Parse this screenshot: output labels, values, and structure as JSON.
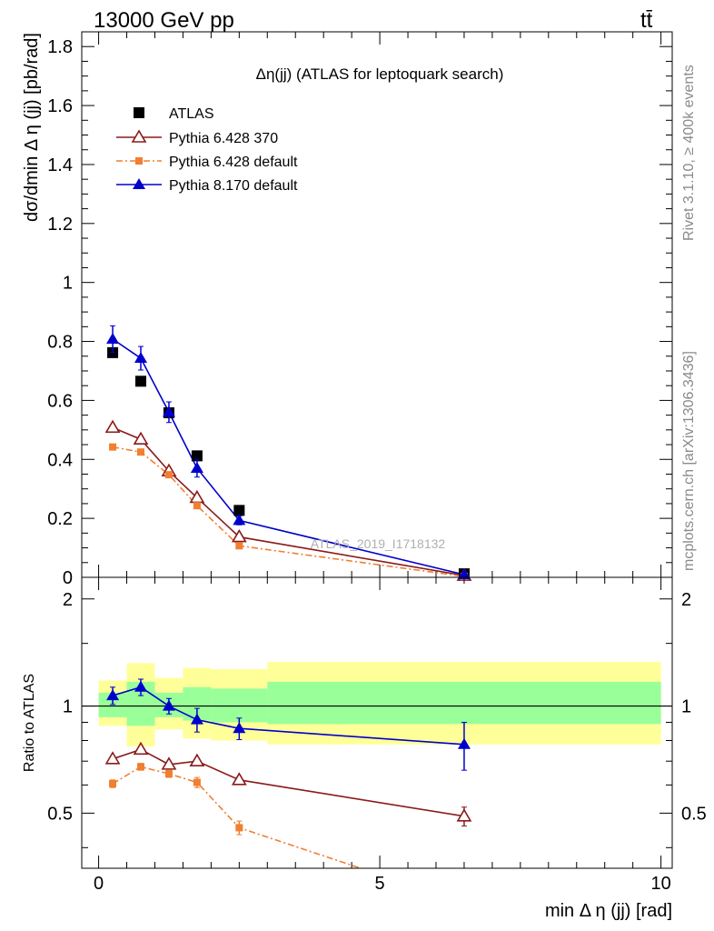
{
  "header": {
    "left": "13000 GeV pp",
    "right": "tt̄"
  },
  "side": {
    "rivet": "Rivet 3.1.10, ≥ 400k events",
    "mcplots": "mcplots.cern.ch [arXiv:1306.3436]"
  },
  "watermark": "ATLAS_2019_I1718132",
  "colors": {
    "atlas": "#000000",
    "py6_370": "#8b1a1a",
    "py6_default": "#f07f30",
    "py8_default": "#0000cc",
    "band_inner": "#99ff99",
    "band_outer": "#ffff99"
  },
  "chart_data": [
    {
      "type": "scatter",
      "title": "Δη(jj) (ATLAS for leptoquark search)",
      "xlabel": "min Δ η (jj) [rad]",
      "ylabel": "dσ/dmin Δ η (jj) [pb/rad]",
      "xlim": [
        -0.3,
        10.2
      ],
      "ylim": [
        0,
        1.85
      ],
      "y_ticks": [
        "0",
        "0.2",
        "0.4",
        "0.6",
        "0.8",
        "1",
        "1.2",
        "1.4",
        "1.6",
        "1.8"
      ],
      "legend_position": "top-left",
      "series": [
        {
          "name": "ATLAS",
          "x": [
            0.25,
            0.75,
            1.25,
            1.75,
            2.5,
            6.5
          ],
          "y": [
            0.762,
            0.665,
            0.558,
            0.412,
            0.227,
            0.012
          ]
        },
        {
          "name": "Pythia 6.428 370",
          "x": [
            0.25,
            0.75,
            1.25,
            1.75,
            2.5,
            6.5
          ],
          "y": [
            0.508,
            0.468,
            0.36,
            0.27,
            0.137,
            0.006
          ]
        },
        {
          "name": "Pythia 6.428 default",
          "x": [
            0.25,
            0.75,
            1.25,
            1.75,
            2.5,
            6.5
          ],
          "y": [
            0.442,
            0.425,
            0.348,
            0.243,
            0.107,
            0.003
          ]
        },
        {
          "name": "Pythia 8.170 default",
          "x": [
            0.25,
            0.75,
            1.25,
            1.75,
            2.5,
            6.5
          ],
          "y": [
            0.808,
            0.743,
            0.56,
            0.37,
            0.193,
            0.009
          ],
          "err": [
            0.045,
            0.04,
            0.035,
            0.03,
            0.015,
            0.002
          ]
        }
      ]
    },
    {
      "type": "scatter",
      "title": "",
      "xlabel": "min Δ η (jj) [rad]",
      "ylabel": "Ratio to ATLAS",
      "xlim": [
        -0.3,
        10.2
      ],
      "ylim": [
        0.35,
        2.3
      ],
      "x_ticks": [
        "0",
        "5",
        "10"
      ],
      "y_ticks": [
        "0.5",
        "1",
        "2"
      ],
      "log_y": true,
      "reference_line": 1,
      "uncertainty_bands": [
        {
          "x_low": 0,
          "x_high": 0.5,
          "inner": [
            0.93,
            1.09
          ],
          "outer": [
            0.88,
            1.18
          ]
        },
        {
          "x_low": 0.5,
          "x_high": 1.0,
          "inner": [
            0.88,
            1.17
          ],
          "outer": [
            0.77,
            1.32
          ]
        },
        {
          "x_low": 1.0,
          "x_high": 1.5,
          "inner": [
            0.93,
            1.09
          ],
          "outer": [
            0.86,
            1.2
          ]
        },
        {
          "x_low": 1.5,
          "x_high": 2.0,
          "inner": [
            0.91,
            1.13
          ],
          "outer": [
            0.81,
            1.28
          ]
        },
        {
          "x_low": 2.0,
          "x_high": 3.0,
          "inner": [
            0.9,
            1.12
          ],
          "outer": [
            0.8,
            1.27
          ]
        },
        {
          "x_low": 3.0,
          "x_high": 10.0,
          "inner": [
            0.89,
            1.17
          ],
          "outer": [
            0.78,
            1.33
          ]
        }
      ],
      "series": [
        {
          "name": "Pythia 6.428 370",
          "x": [
            0.25,
            0.75,
            1.25,
            1.75,
            2.5,
            6.5
          ],
          "y": [
            0.71,
            0.755,
            0.685,
            0.7,
            0.62,
            0.49
          ],
          "err": [
            0,
            0,
            0,
            0,
            0,
            0.03
          ]
        },
        {
          "name": "Pythia 6.428 default",
          "x": [
            0.25,
            0.75,
            1.25,
            1.75,
            2.5,
            4.9
          ],
          "y": [
            0.605,
            0.675,
            0.645,
            0.61,
            0.455,
            0.34
          ],
          "err": [
            0.015,
            0.015,
            0.015,
            0.02,
            0.02,
            0
          ]
        },
        {
          "name": "Pythia 8.170 default",
          "x": [
            0.25,
            0.75,
            1.25,
            1.75,
            2.5,
            6.5
          ],
          "y": [
            1.07,
            1.13,
            1.0,
            0.915,
            0.865,
            0.78
          ],
          "err": [
            0.06,
            0.06,
            0.05,
            0.07,
            0.06,
            0.12
          ]
        }
      ]
    }
  ]
}
